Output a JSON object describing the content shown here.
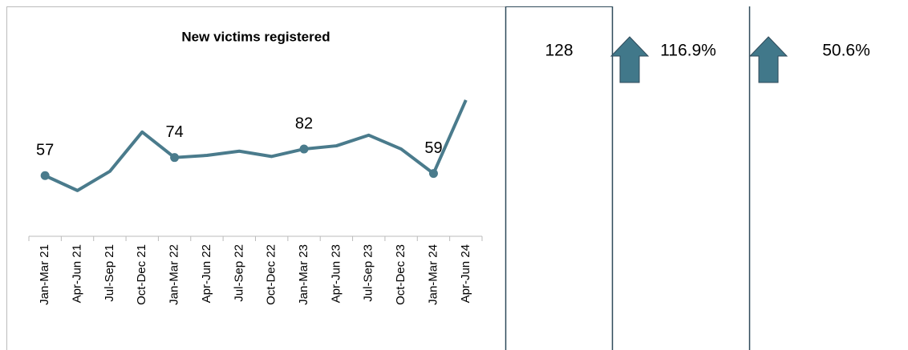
{
  "chart_data": {
    "type": "line",
    "title": "New victims registered",
    "categories": [
      "Jan-Mar 21",
      "Apr-Jun 21",
      "Jul-Sep 21",
      "Oct-Dec 21",
      "Jan-Mar 22",
      "Apr-Jun 22",
      "Jul-Sep 22",
      "Oct-Dec 22",
      "Jan-Mar 23",
      "Apr-Jun 23",
      "Jul-Sep 23",
      "Oct-Dec 23",
      "Jan-Mar 24",
      "Apr-Jun 24"
    ],
    "series": [
      {
        "name": "New victims registered",
        "color": "#4a7b8c",
        "values": [
          57,
          43,
          61,
          98,
          74,
          76,
          80,
          75,
          82,
          85,
          95,
          82,
          59,
          128
        ]
      }
    ],
    "labeled_points": [
      0,
      4,
      8,
      12
    ],
    "ylim": [
      0,
      140
    ]
  },
  "kpis": [
    "128",
    "116.9%",
    "50.6%"
  ]
}
